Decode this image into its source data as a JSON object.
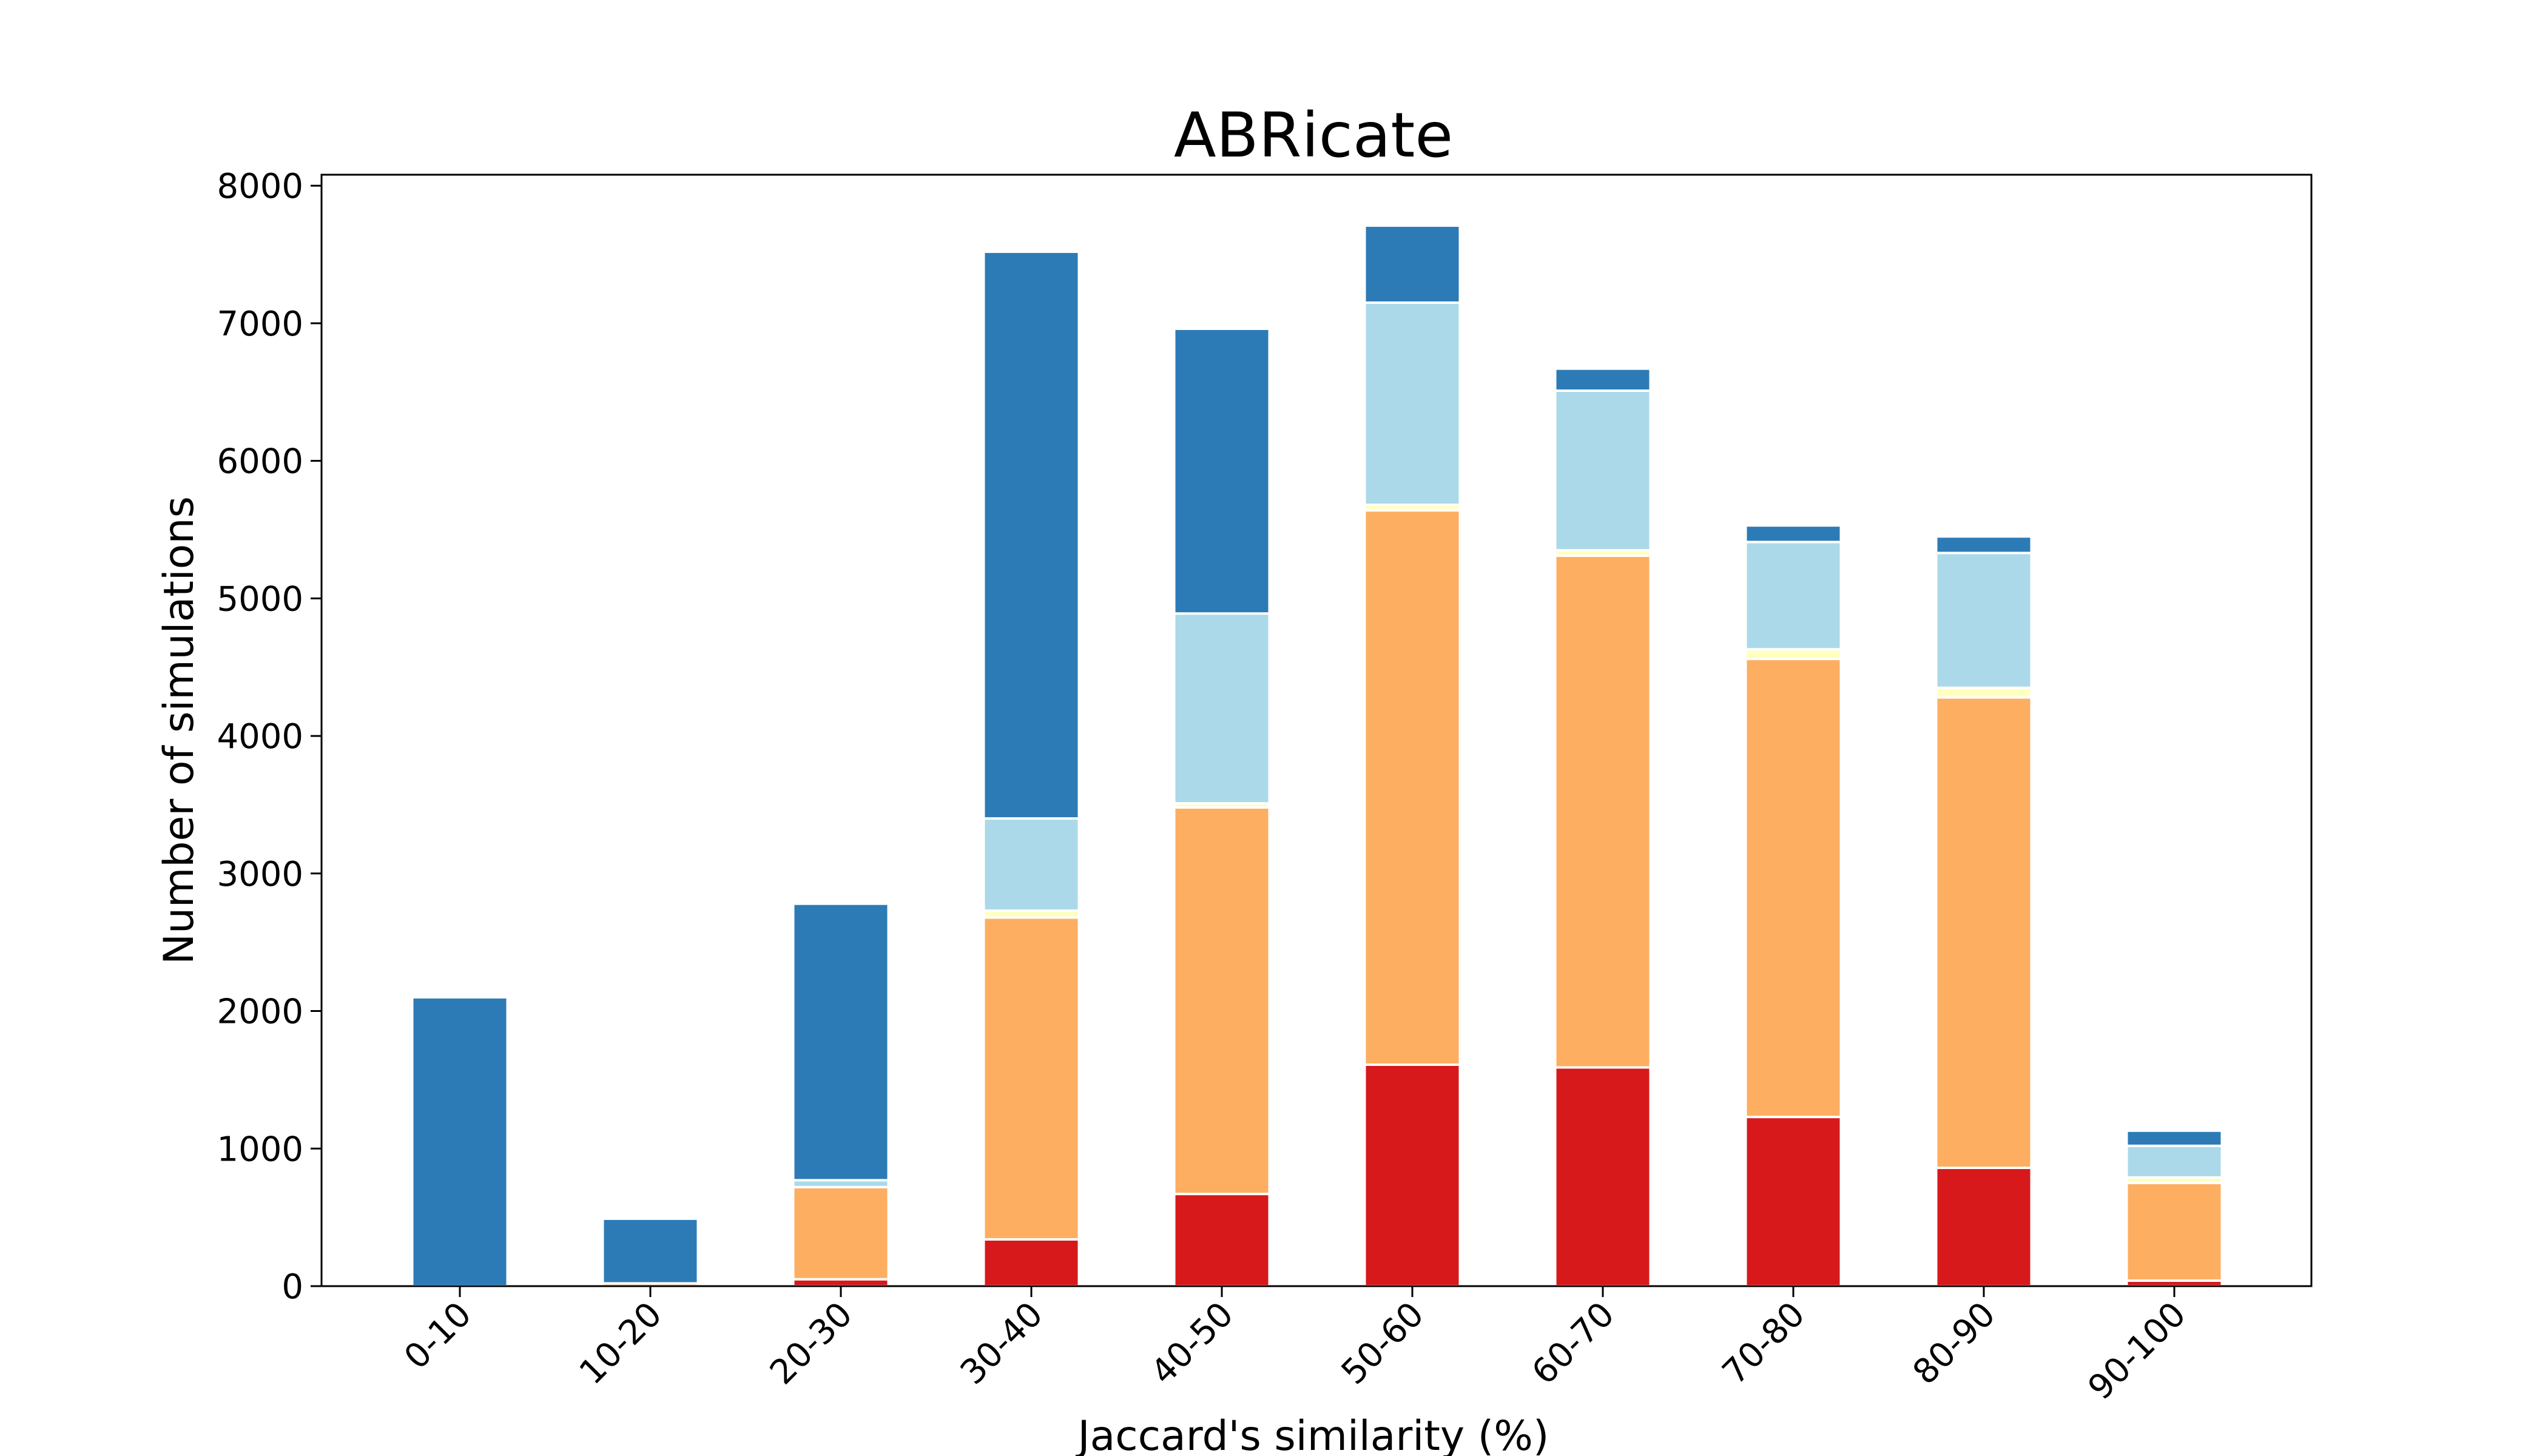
{
  "chart_data": {
    "type": "bar",
    "stacked": true,
    "title": "ABRicate",
    "xlabel": "Jaccard's similarity (%)",
    "ylabel": "Number of simulations",
    "ylim": [
      0,
      8080
    ],
    "yticks": [
      0,
      1000,
      2000,
      3000,
      4000,
      5000,
      6000,
      7000,
      8000
    ],
    "yticks_labels": [
      "0",
      "1000",
      "2000",
      "3000",
      "4000",
      "5000",
      "6000",
      "7000",
      "8000"
    ],
    "categories": [
      "0-10",
      "10-20",
      "20-30",
      "30-40",
      "40-50",
      "50-60",
      "60-70",
      "70-80",
      "80-90",
      "90-100"
    ],
    "legend": "none",
    "grid": false,
    "series": [
      {
        "color": "#d7191c",
        "values": [
          0,
          0,
          50,
          340,
          670,
          1610,
          1590,
          1230,
          860,
          40
        ]
      },
      {
        "color": "#fdae61",
        "values": [
          0,
          20,
          670,
          2340,
          2810,
          4030,
          3720,
          3330,
          3420,
          710
        ]
      },
      {
        "color": "#ffffbf",
        "values": [
          0,
          0,
          0,
          50,
          30,
          40,
          40,
          70,
          70,
          40
        ]
      },
      {
        "color": "#abd9e9",
        "values": [
          0,
          0,
          50,
          670,
          1380,
          1470,
          1160,
          780,
          980,
          230
        ]
      },
      {
        "color": "#2c7bb6",
        "values": [
          2100,
          470,
          2010,
          4120,
          2070,
          560,
          160,
          120,
          120,
          110
        ]
      }
    ]
  }
}
